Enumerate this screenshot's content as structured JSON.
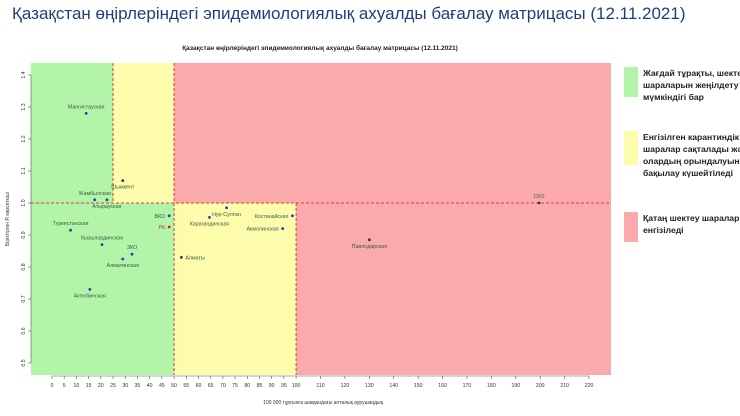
{
  "slide_title": "Қазақстан өңірлеріндегі эпидемиологиялық ахуалды бағалау матрицасы  (12.11.2021)",
  "legend": [
    {
      "color": "#b3f5a8",
      "text": "Жағдай тұрақты, шектеу шараларын жеңілдету мүмкіндігі бар"
    },
    {
      "color": "#fcfcac",
      "text": "Енгізілген карантиндік шаралар сақталады және олардың орындалуын бақылау күшейтіледі"
    },
    {
      "color": "#fbaaac",
      "text": "Қатаң шектеу шаралары енгізіледі"
    }
  ],
  "chart_data": {
    "type": "scatter",
    "title": "Қазақстан өңірлеріндегі эпидемиологиялық ахуалды бағалау матрицасы  (12.11.2021)",
    "xlabel": "100 000 тұрғынға шаққандағы апталық аурушаңдық",
    "ylabel": "Біріктірген R көрсеткіші",
    "xlim": [
      -8.6,
      229
    ],
    "ylim": [
      0.4625,
      1.4375
    ],
    "xticks": [
      0,
      5,
      10,
      15,
      20,
      25,
      30,
      35,
      40,
      45,
      50,
      55,
      60,
      65,
      70,
      75,
      80,
      85,
      90,
      95,
      100,
      110,
      120,
      130,
      140,
      150,
      160,
      170,
      180,
      190,
      200,
      210,
      220
    ],
    "yticks": [
      0.5,
      0.6,
      0.7,
      0.8,
      0.9,
      1.0,
      1.1,
      1.2,
      1.3,
      1.4
    ],
    "grid": false,
    "thresholds": {
      "x": [
        25,
        50,
        100
      ],
      "y": 1.0
    },
    "zones": [
      {
        "color": "#b3f5a8",
        "x": [
          -8.6,
          25
        ],
        "y": [
          0.4625,
          1.4375
        ]
      },
      {
        "color": "#b3f5a8",
        "x": [
          25,
          50
        ],
        "y": [
          0.4625,
          1.0
        ]
      },
      {
        "color": "#fcfcac",
        "x": [
          25,
          50
        ],
        "y": [
          1.0,
          1.4375
        ]
      },
      {
        "color": "#fcfcac",
        "x": [
          50,
          100
        ],
        "y": [
          0.4625,
          1.0
        ]
      },
      {
        "color": "#fbaaac",
        "x": [
          50,
          229
        ],
        "y": [
          1.0,
          1.4375
        ]
      },
      {
        "color": "#fbaaac",
        "x": [
          100,
          229
        ],
        "y": [
          0.4625,
          1.0
        ]
      }
    ],
    "threshold_color": "#d0403a",
    "points": [
      {
        "label": "Мангистауская",
        "x": 14,
        "y": 1.28,
        "color": "#1f3fbf"
      },
      {
        "label": "Шымкент",
        "x": 29,
        "y": 1.07,
        "color": "#5a1a5a"
      },
      {
        "label": "Жамбылская",
        "x": 17.5,
        "y": 1.01,
        "color": "#1f3fbf"
      },
      {
        "label": "Атырауская",
        "x": 22.5,
        "y": 1.01,
        "color": "#1f3fbf"
      },
      {
        "label": "ВКО",
        "x": 48,
        "y": 0.96,
        "color": "#1f3fbf"
      },
      {
        "label": "РК",
        "x": 48,
        "y": 0.925,
        "color": "#d02020"
      },
      {
        "label": "Түркестанская",
        "x": 7.6,
        "y": 0.915,
        "color": "#1f3fbf"
      },
      {
        "label": "Кызылординская",
        "x": 20.5,
        "y": 0.87,
        "color": "#1f3fbf"
      },
      {
        "label": "ЗКО",
        "x": 32.8,
        "y": 0.84,
        "color": "#1f3fbf"
      },
      {
        "label": "Алматинская",
        "x": 29,
        "y": 0.825,
        "color": "#1f3fbf"
      },
      {
        "label": "Актюбинская",
        "x": 15.5,
        "y": 0.73,
        "color": "#1f3fbf"
      },
      {
        "label": "Алматы",
        "x": 53,
        "y": 0.83,
        "color": "#5a1a5a"
      },
      {
        "label": "Нур-Султан",
        "x": 71.5,
        "y": 0.985,
        "color": "#1f3fbf"
      },
      {
        "label": "Карагандинская",
        "x": 64.5,
        "y": 0.955,
        "color": "#1f3fbf"
      },
      {
        "label": "Костанайская",
        "x": 98.5,
        "y": 0.96,
        "color": "#1f3fbf"
      },
      {
        "label": "Акмолинская",
        "x": 94.5,
        "y": 0.92,
        "color": "#1f3fbf"
      },
      {
        "label": "Павлодарская",
        "x": 130,
        "y": 0.885,
        "color": "#5a1a5a"
      },
      {
        "label": "СКО",
        "x": 199.5,
        "y": 1.0,
        "color": "#5a1a5a"
      }
    ]
  }
}
